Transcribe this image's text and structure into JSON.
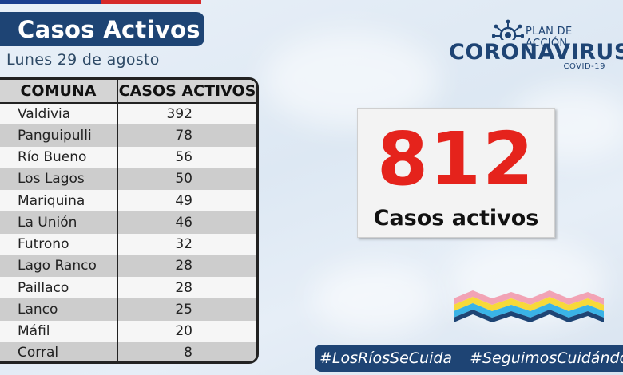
{
  "header": {
    "title": "Casos Activos",
    "date": "Lunes 29 de agosto"
  },
  "colors": {
    "navy": "#1e4474",
    "red": "#e5231c",
    "flag_blue": "#1b3f8f",
    "flag_red": "#d62a2a"
  },
  "table": {
    "headers": [
      "COMUNA",
      "CASOS ACTIVOS"
    ],
    "rows": [
      {
        "comuna": "Valdivia",
        "casos": "392"
      },
      {
        "comuna": "Panguipulli",
        "casos": "78"
      },
      {
        "comuna": "Río Bueno",
        "casos": "56"
      },
      {
        "comuna": "Los Lagos",
        "casos": "50"
      },
      {
        "comuna": "Mariquina",
        "casos": "49"
      },
      {
        "comuna": "La Unión",
        "casos": "46"
      },
      {
        "comuna": "Futrono",
        "casos": "32"
      },
      {
        "comuna": "Lago Ranco",
        "casos": "28"
      },
      {
        "comuna": "Paillaco",
        "casos": "28"
      },
      {
        "comuna": "Lanco",
        "casos": "25"
      },
      {
        "comuna": "Máfil",
        "casos": "20"
      },
      {
        "comuna": "Corral",
        "casos": "8"
      }
    ]
  },
  "logo": {
    "plan": "PLAN DE ACCIÓN",
    "name": "CORONAVIRUS",
    "sub": "COVID-19",
    "icon": "virus-icon"
  },
  "summary": {
    "total": "812",
    "label": "Casos activos"
  },
  "footer": {
    "hashtags": [
      "#LosRíosSeCuida",
      "#SeguimosCuidándonos"
    ]
  }
}
